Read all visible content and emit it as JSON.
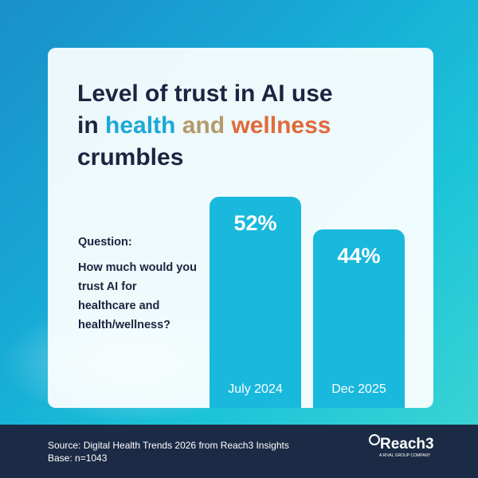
{
  "title": {
    "part1": "Level of trust in AI use",
    "part2": "in",
    "w1": "health",
    "w2": "and",
    "w3": "wellness",
    "part3": "crumbles"
  },
  "question": {
    "heading": "Question:",
    "text": "How much would you trust AI for healthcare and health/wellness?"
  },
  "chart_data": {
    "type": "bar",
    "categories": [
      "July 2024",
      "Dec 2025"
    ],
    "values": [
      52,
      44
    ],
    "data_labels": [
      "52%",
      "44%"
    ],
    "colors": [
      "#19b8dd",
      "#19b8dd"
    ]
  },
  "footer": {
    "source": "Source: Digital Health Trends 2026 from Reach3 Insights",
    "base": "Base: n=1043",
    "logo": "Reach3",
    "logo_sub": "A RIVAL GROUP COMPANY"
  }
}
